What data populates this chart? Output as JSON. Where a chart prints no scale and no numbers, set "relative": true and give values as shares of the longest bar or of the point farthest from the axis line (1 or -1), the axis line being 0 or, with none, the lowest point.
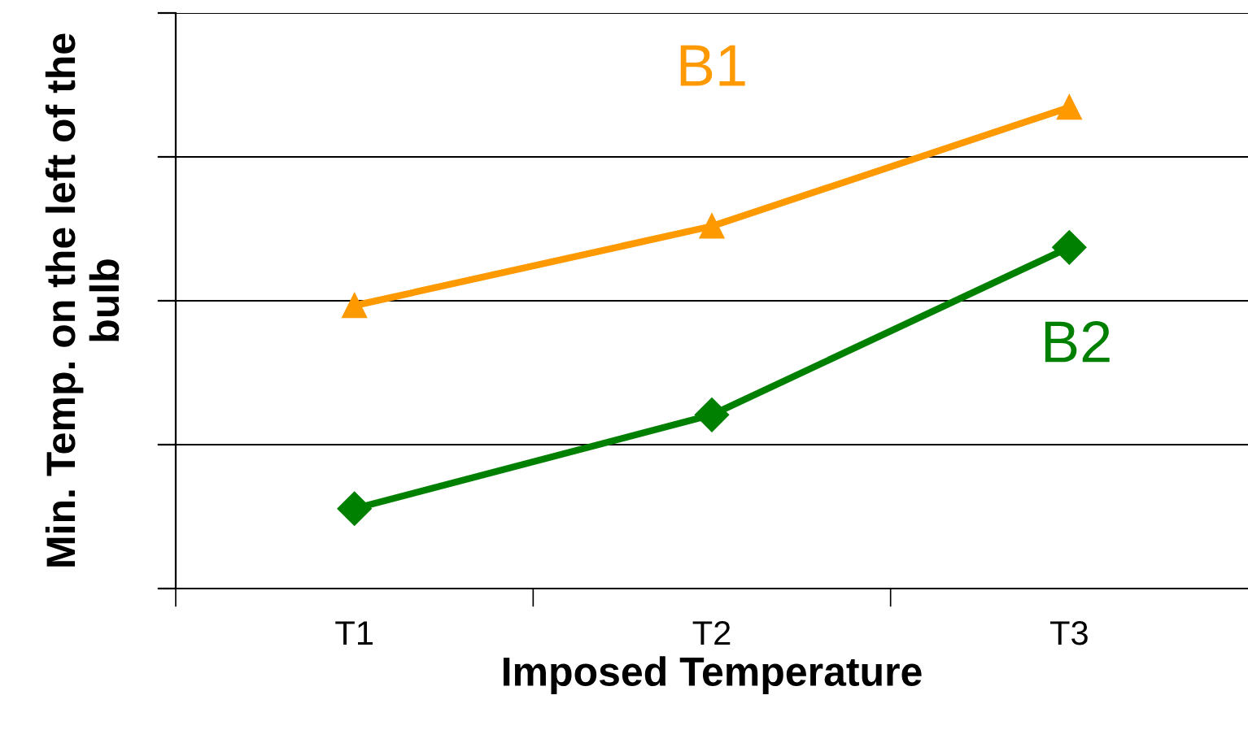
{
  "chart_data": {
    "type": "line",
    "xlabel": "Imposed Temperature",
    "ylabel": "Min. Temp. on the left of the bulb",
    "categories": [
      "T1",
      "T2",
      "T3"
    ],
    "relative": true,
    "grid": "y",
    "series": [
      {
        "name": "B1",
        "color": "#ff9900",
        "marker": "triangle",
        "values": [
          0.588,
          0.753,
          1.0
        ]
      },
      {
        "name": "B2",
        "color": "#008000",
        "marker": "diamond",
        "values": [
          0.166,
          0.361,
          0.709
        ]
      }
    ]
  }
}
